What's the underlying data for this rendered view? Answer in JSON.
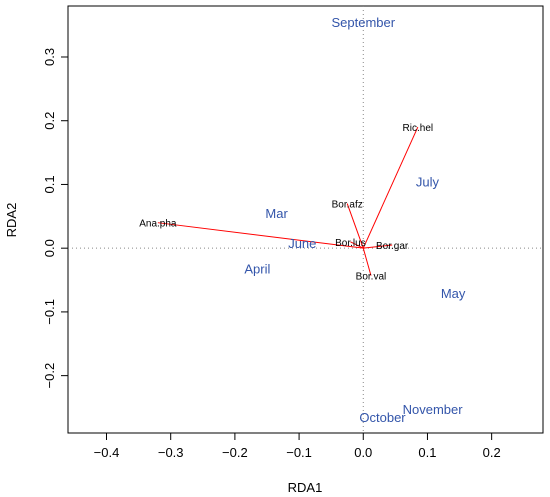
{
  "chart_data": {
    "type": "scatter",
    "title": "",
    "xlabel": "RDA1",
    "ylabel": "RDA2",
    "xlim": [
      -0.46,
      0.28
    ],
    "ylim": [
      -0.29,
      0.38
    ],
    "x_ticks": [
      -0.4,
      -0.3,
      -0.2,
      -0.1,
      0.0,
      0.1,
      0.2
    ],
    "y_ticks": [
      -0.2,
      -0.1,
      0.0,
      0.1,
      0.2,
      0.3
    ],
    "x_tick_labels": [
      "−0.4",
      "−0.3",
      "−0.2",
      "−0.1",
      "0.0",
      "0.1",
      "0.2"
    ],
    "y_tick_labels": [
      "−0.2",
      "−0.1",
      "0.0",
      "0.1",
      "0.2",
      "0.3"
    ],
    "reference_lines": {
      "x": 0,
      "y": 0,
      "style": "dotted"
    },
    "grid": false,
    "species": [
      {
        "label": "Ana.pha",
        "x": -0.32,
        "y": 0.04
      },
      {
        "label": "Ric.hel",
        "x": 0.085,
        "y": 0.19
      },
      {
        "label": "Bor.afz",
        "x": -0.025,
        "y": 0.07
      },
      {
        "label": "Bor.lus",
        "x": -0.02,
        "y": 0.01
      },
      {
        "label": "Bor.gar",
        "x": 0.045,
        "y": 0.005
      },
      {
        "label": "Bor.val",
        "x": 0.012,
        "y": -0.043
      }
    ],
    "sites": [
      {
        "label": "September",
        "x": 0.0,
        "y": 0.355
      },
      {
        "label": "July",
        "x": 0.1,
        "y": 0.105
      },
      {
        "label": "Mar",
        "x": -0.135,
        "y": 0.055
      },
      {
        "label": "June",
        "x": -0.095,
        "y": 0.008
      },
      {
        "label": "April",
        "x": -0.165,
        "y": -0.032
      },
      {
        "label": "May",
        "x": 0.14,
        "y": -0.07
      },
      {
        "label": "November",
        "x": 0.108,
        "y": -0.252
      },
      {
        "label": "October",
        "x": 0.03,
        "y": -0.265
      }
    ],
    "colors": {
      "arrows": "#ff0000",
      "sites": "#3355aa",
      "species": "#000000",
      "axes": "#000000"
    }
  }
}
